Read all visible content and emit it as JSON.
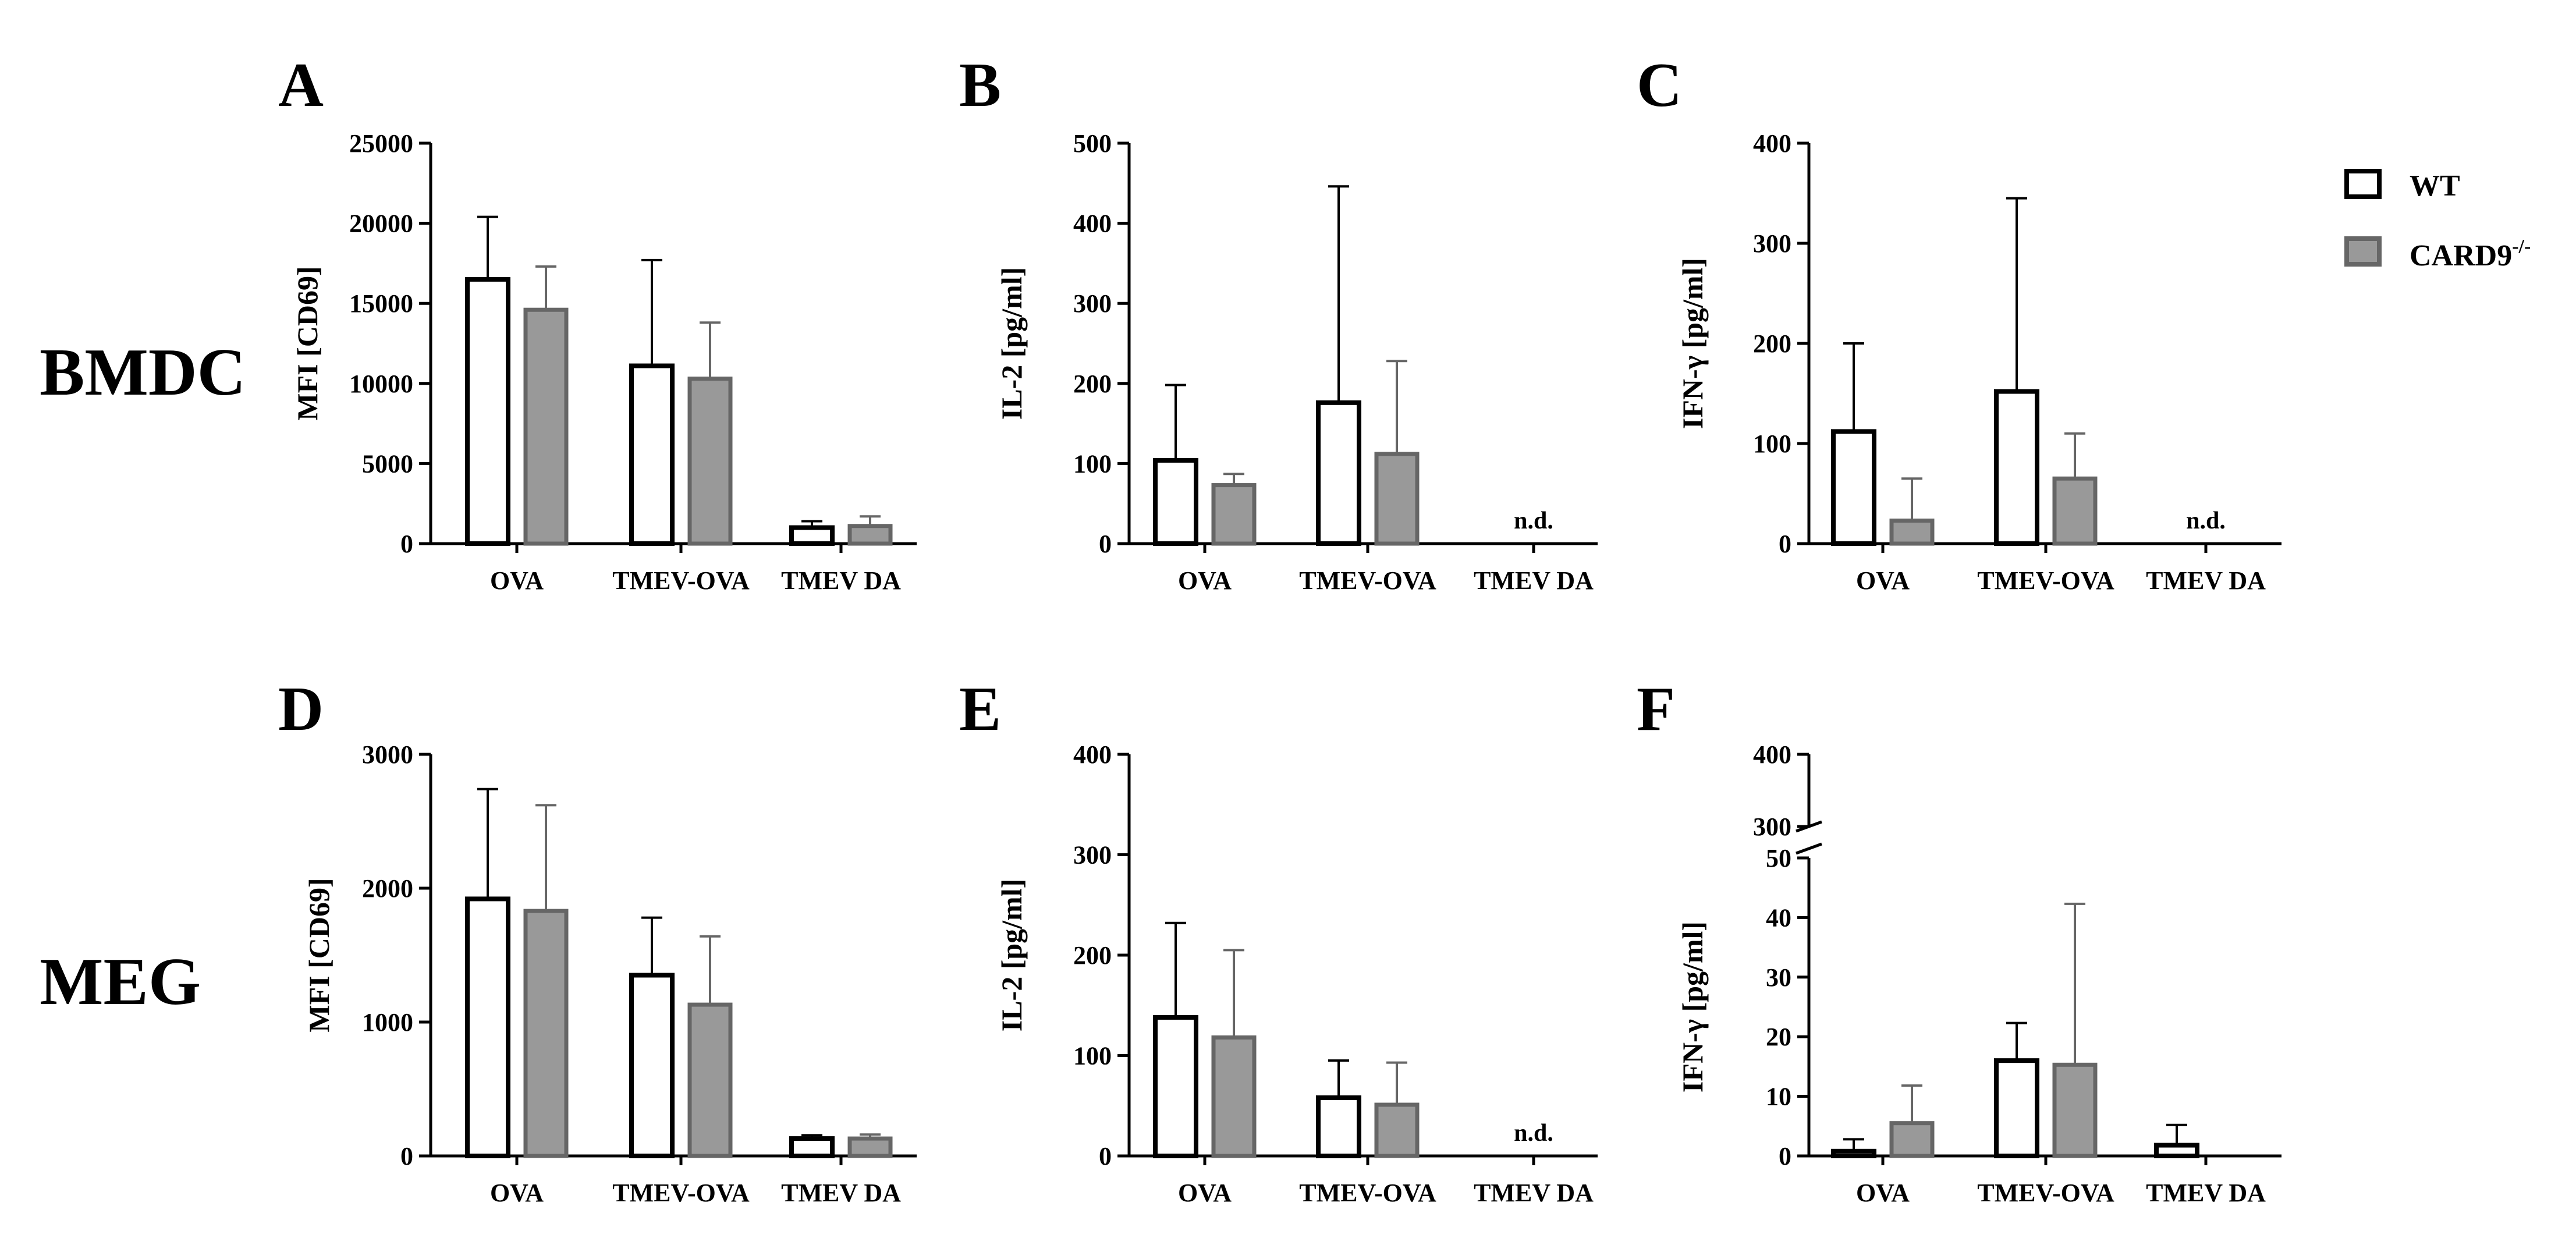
{
  "row_labels": [
    "BMDC",
    "MEG"
  ],
  "legend": {
    "wt": "WT",
    "card9": "CARD9",
    "card9_superscript": "-/-"
  },
  "colors": {
    "wt_fill": "#ffffff",
    "wt_stroke": "#000000",
    "card9_fill": "#999999",
    "card9_stroke": "#666666",
    "axis": "#000000"
  },
  "chart_data": [
    {
      "type": "bar",
      "panel": "A",
      "ylabel": "MFI [CD69]",
      "xlabel": "",
      "categories": [
        "OVA",
        "TMEV-OVA",
        "TMEV DA"
      ],
      "ylim": [
        0,
        25000
      ],
      "yticks": [
        0,
        5000,
        10000,
        15000,
        20000,
        25000
      ],
      "series": [
        {
          "name": "WT",
          "values": [
            16500,
            11100,
            1000
          ],
          "errors": [
            3900,
            6600,
            400
          ]
        },
        {
          "name": "CARD9-/-",
          "values": [
            14600,
            10300,
            1100
          ],
          "errors": [
            2700,
            3500,
            600
          ]
        }
      ]
    },
    {
      "type": "bar",
      "panel": "B",
      "ylabel": "IL-2 [pg/ml]",
      "xlabel": "",
      "categories": [
        "OVA",
        "TMEV-OVA",
        "TMEV DA"
      ],
      "ylim": [
        0,
        500
      ],
      "yticks": [
        0,
        100,
        200,
        300,
        400,
        500
      ],
      "series": [
        {
          "name": "WT",
          "values": [
            104,
            176,
            null
          ],
          "errors": [
            94,
            270,
            null
          ]
        },
        {
          "name": "CARD9-/-",
          "values": [
            73,
            112,
            null
          ],
          "errors": [
            14,
            116,
            null
          ]
        }
      ],
      "annotation": "n.d."
    },
    {
      "type": "bar",
      "panel": "C",
      "ylabel": "IFN-γ [pg/ml]",
      "xlabel": "",
      "categories": [
        "OVA",
        "TMEV-OVA",
        "TMEV DA"
      ],
      "ylim": [
        0,
        400
      ],
      "yticks": [
        0,
        100,
        200,
        300,
        400
      ],
      "series": [
        {
          "name": "WT",
          "values": [
            112,
            152,
            null
          ],
          "errors": [
            88,
            193,
            null
          ]
        },
        {
          "name": "CARD9-/-",
          "values": [
            23,
            65,
            null
          ],
          "errors": [
            42,
            45,
            null
          ]
        }
      ],
      "annotation": "n.d."
    },
    {
      "type": "bar",
      "panel": "D",
      "ylabel": "MFI [CD69]",
      "xlabel": "",
      "categories": [
        "OVA",
        "TMEV-OVA",
        "TMEV DA"
      ],
      "ylim": [
        0,
        3000
      ],
      "yticks": [
        0,
        1000,
        2000,
        3000
      ],
      "series": [
        {
          "name": "WT",
          "values": [
            1920,
            1350,
            130
          ],
          "errors": [
            820,
            430,
            25
          ]
        },
        {
          "name": "CARD9-/-",
          "values": [
            1830,
            1130,
            130
          ],
          "errors": [
            790,
            510,
            30
          ]
        }
      ]
    },
    {
      "type": "bar",
      "panel": "E",
      "ylabel": "IL-2 [pg/ml]",
      "xlabel": "",
      "categories": [
        "OVA",
        "TMEV-OVA",
        "TMEV DA"
      ],
      "ylim": [
        0,
        400
      ],
      "yticks": [
        0,
        100,
        200,
        300,
        400
      ],
      "series": [
        {
          "name": "WT",
          "values": [
            138,
            58,
            null
          ],
          "errors": [
            94,
            37,
            null
          ]
        },
        {
          "name": "CARD9-/-",
          "values": [
            118,
            51,
            null
          ],
          "errors": [
            87,
            42,
            null
          ]
        }
      ],
      "annotation": "n.d."
    },
    {
      "type": "bar",
      "panel": "F",
      "ylabel": "IFN-γ [pg/ml]",
      "xlabel": "",
      "categories": [
        "OVA",
        "TMEV-OVA",
        "TMEV DA"
      ],
      "ylim": [
        0,
        400
      ],
      "axis_break": [
        50,
        300
      ],
      "yticks": [
        0,
        10,
        20,
        30,
        40,
        50,
        300,
        400
      ],
      "series": [
        {
          "name": "WT",
          "values": [
            0.8,
            16,
            1.8
          ],
          "errors": [
            2.0,
            6.3,
            3.4
          ]
        },
        {
          "name": "CARD9-/-",
          "values": [
            5.5,
            15.3,
            0
          ],
          "errors": [
            6.3,
            27,
            0
          ]
        }
      ]
    }
  ]
}
